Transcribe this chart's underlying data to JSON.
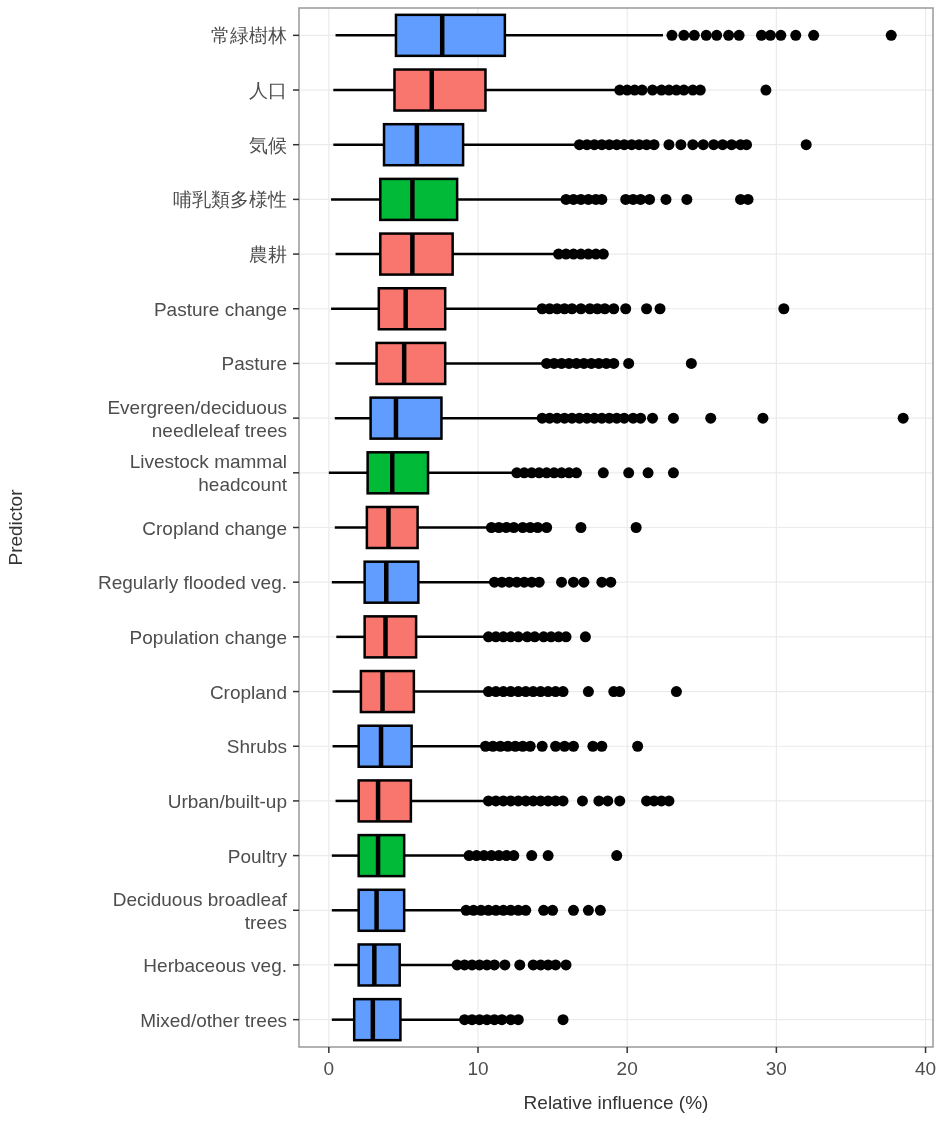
{
  "chart_data": {
    "type": "box",
    "orientation": "horizontal",
    "xlabel": "Relative influence (%)",
    "ylabel": "Predictor",
    "xlim": [
      -2,
      40.5
    ],
    "xticks": [
      0,
      10,
      20,
      30,
      40
    ],
    "grid": true,
    "categories": [
      "常緑樹林",
      "人口",
      "気候",
      "哺乳類多様性",
      "農耕",
      "Pasture change",
      "Pasture",
      "Evergreen/deciduous\nneedleleaf trees",
      "Livestock mammal\nheadcount",
      "Cropland change",
      "Regularly flooded veg.",
      "Population change",
      "Cropland",
      "Shrubs",
      "Urban/built-up",
      "Poultry",
      "Deciduous broadleaf\ntrees",
      "Herbaceous veg.",
      "Mixed/other trees"
    ],
    "colors": [
      "#619cff",
      "#f8766d",
      "#619cff",
      "#00ba38",
      "#f8766d",
      "#f8766d",
      "#f8766d",
      "#619cff",
      "#00ba38",
      "#f8766d",
      "#619cff",
      "#f8766d",
      "#f8766d",
      "#619cff",
      "#f8766d",
      "#00ba38",
      "#619cff",
      "#619cff",
      "#619cff"
    ],
    "boxes": [
      {
        "low": 0.45,
        "q1": 4.5,
        "median": 7.6,
        "q3": 11.8,
        "high": 22.4,
        "outliers": [
          23.0,
          23.8,
          24.5,
          25.3,
          26.0,
          26.8,
          27.5,
          29.0,
          29.6,
          30.3,
          31.3,
          32.5,
          37.7
        ]
      },
      {
        "low": 0.3,
        "q1": 4.4,
        "median": 6.9,
        "q3": 10.5,
        "high": 19.3,
        "outliers": [
          19.5,
          20.0,
          20.5,
          21.0,
          21.7,
          22.3,
          22.8,
          23.3,
          23.8,
          24.4,
          24.9,
          29.3
        ]
      },
      {
        "low": 0.3,
        "q1": 3.7,
        "median": 5.9,
        "q3": 9.0,
        "high": 16.7,
        "outliers": [
          16.8,
          17.3,
          17.8,
          18.3,
          18.8,
          19.3,
          19.8,
          20.3,
          20.8,
          21.3,
          21.8,
          22.8,
          23.6,
          24.4,
          25.1,
          25.8,
          26.4,
          27.0,
          27.6,
          28.0,
          32.0
        ]
      },
      {
        "low": 0.15,
        "q1": 3.45,
        "median": 5.6,
        "q3": 8.6,
        "high": 15.8,
        "outliers": [
          15.9,
          16.4,
          16.9,
          17.4,
          17.9,
          18.3,
          19.9,
          20.4,
          20.9,
          21.5,
          22.6,
          24.0,
          27.6,
          28.1
        ]
      },
      {
        "low": 0.45,
        "q1": 3.45,
        "median": 5.6,
        "q3": 8.3,
        "high": 15.3,
        "outliers": [
          15.4,
          15.9,
          16.4,
          16.9,
          17.4,
          17.9,
          18.4
        ]
      },
      {
        "low": 0.15,
        "q1": 3.35,
        "median": 5.15,
        "q3": 7.8,
        "high": 14.2,
        "outliers": [
          14.3,
          14.8,
          15.3,
          15.8,
          16.3,
          16.9,
          17.5,
          18.0,
          18.5,
          19.1,
          19.9,
          21.3,
          22.2,
          30.5
        ]
      },
      {
        "low": 0.45,
        "q1": 3.2,
        "median": 5.05,
        "q3": 7.8,
        "high": 14.5,
        "outliers": [
          14.6,
          15.1,
          15.6,
          16.1,
          16.6,
          17.1,
          17.6,
          18.1,
          18.6,
          19.1,
          20.1,
          24.3
        ]
      },
      {
        "low": 0.4,
        "q1": 2.8,
        "median": 4.5,
        "q3": 7.55,
        "high": 14.2,
        "outliers": [
          14.3,
          14.8,
          15.3,
          15.8,
          16.3,
          16.8,
          17.3,
          17.8,
          18.3,
          18.8,
          19.3,
          19.8,
          20.4,
          20.9,
          21.7,
          23.1,
          25.6,
          29.1,
          38.5
        ]
      },
      {
        "low": 0.0,
        "q1": 2.6,
        "median": 4.25,
        "q3": 6.65,
        "high": 12.5,
        "outliers": [
          12.6,
          13.1,
          13.6,
          14.1,
          14.6,
          15.1,
          15.6,
          16.1,
          16.6,
          18.4,
          20.1,
          21.4,
          23.1
        ]
      },
      {
        "low": 0.4,
        "q1": 2.55,
        "median": 4.0,
        "q3": 5.95,
        "high": 10.8,
        "outliers": [
          10.9,
          11.4,
          11.9,
          12.4,
          13.0,
          13.5,
          14.0,
          14.6,
          16.9,
          20.6
        ]
      },
      {
        "low": 0.2,
        "q1": 2.4,
        "median": 3.85,
        "q3": 6.0,
        "high": 11.0,
        "outliers": [
          11.1,
          11.6,
          12.1,
          12.6,
          13.1,
          13.6,
          14.1,
          15.6,
          16.4,
          17.1,
          18.3,
          18.9
        ]
      },
      {
        "low": 0.5,
        "q1": 2.4,
        "median": 3.8,
        "q3": 5.85,
        "high": 10.6,
        "outliers": [
          10.7,
          11.2,
          11.7,
          12.2,
          12.7,
          13.3,
          13.8,
          14.4,
          14.9,
          15.4,
          15.9,
          17.2
        ]
      },
      {
        "low": 0.25,
        "q1": 2.15,
        "median": 3.6,
        "q3": 5.7,
        "high": 10.6,
        "outliers": [
          10.7,
          11.2,
          11.7,
          12.2,
          12.7,
          13.2,
          13.7,
          14.2,
          14.7,
          15.2,
          15.7,
          17.4,
          19.1,
          19.5,
          23.3
        ]
      },
      {
        "low": 0.25,
        "q1": 2.0,
        "median": 3.5,
        "q3": 5.55,
        "high": 10.4,
        "outliers": [
          10.5,
          11.0,
          11.5,
          12.0,
          12.5,
          13.0,
          13.5,
          14.3,
          15.2,
          15.8,
          16.4,
          17.7,
          18.3,
          20.7
        ]
      },
      {
        "low": 0.45,
        "q1": 2.0,
        "median": 3.3,
        "q3": 5.5,
        "high": 10.6,
        "outliers": [
          10.7,
          11.2,
          11.7,
          12.2,
          12.7,
          13.2,
          13.7,
          14.2,
          14.7,
          15.2,
          15.7,
          17.0,
          18.1,
          18.7,
          19.5,
          21.3,
          21.8,
          22.3,
          22.8
        ]
      },
      {
        "low": 0.2,
        "q1": 2.0,
        "median": 3.3,
        "q3": 5.05,
        "high": 9.35,
        "outliers": [
          9.4,
          9.9,
          10.4,
          10.9,
          11.4,
          11.9,
          12.4,
          13.6,
          14.7,
          19.3
        ]
      },
      {
        "low": 0.2,
        "q1": 2.0,
        "median": 3.2,
        "q3": 5.05,
        "high": 9.1,
        "outliers": [
          9.2,
          9.7,
          10.2,
          10.7,
          11.2,
          11.7,
          12.2,
          12.7,
          13.2,
          14.4,
          15.0,
          16.4,
          17.4,
          18.2
        ]
      },
      {
        "low": 0.35,
        "q1": 2.0,
        "median": 3.05,
        "q3": 4.75,
        "high": 8.55,
        "outliers": [
          8.6,
          9.1,
          9.6,
          10.1,
          10.6,
          11.1,
          11.8,
          12.8,
          13.7,
          14.2,
          14.7,
          15.2,
          15.9
        ]
      },
      {
        "low": 0.2,
        "q1": 1.7,
        "median": 2.95,
        "q3": 4.8,
        "high": 9.0,
        "outliers": [
          9.1,
          9.6,
          10.1,
          10.6,
          11.1,
          11.6,
          12.2,
          12.7,
          15.7
        ]
      }
    ]
  }
}
